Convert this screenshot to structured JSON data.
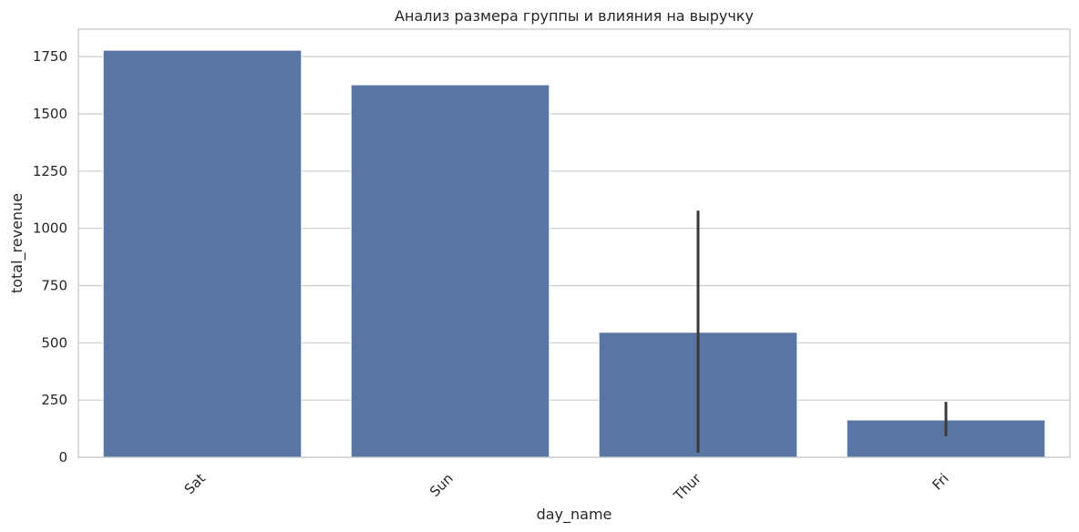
{
  "chart_data": {
    "type": "bar",
    "title": "Анализ размера группы и влияния на выручку",
    "xlabel": "day_name",
    "ylabel": "total_revenue",
    "categories": [
      "Sat",
      "Sun",
      "Thur",
      "Fri"
    ],
    "values": [
      1778,
      1627,
      546,
      163
    ],
    "error_bars": [
      null,
      null,
      [
        20,
        1077
      ],
      [
        92,
        242
      ]
    ],
    "ylim": [
      0,
      1870
    ],
    "yticks": [
      0,
      250,
      500,
      750,
      1000,
      1250,
      1500,
      1750
    ],
    "x_tick_rotation": 45,
    "grid": "horizontal",
    "colors": {
      "bar": "#5975a4",
      "errorbar": "#3a3a3a",
      "grid": "#cccccc"
    }
  }
}
